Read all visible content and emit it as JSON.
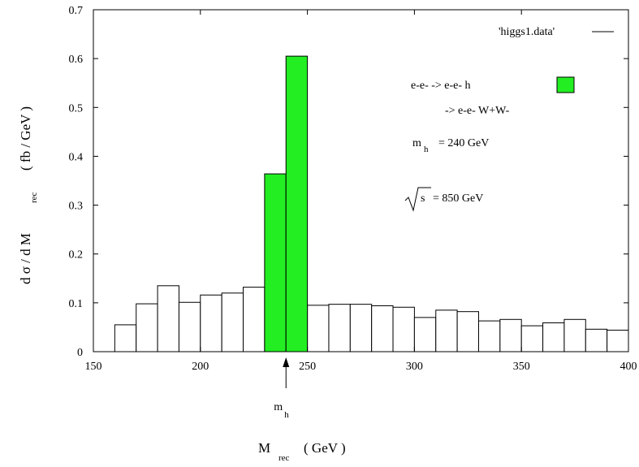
{
  "chart_data": {
    "type": "bar",
    "xlim": [
      150,
      400
    ],
    "ylim": [
      0,
      0.7
    ],
    "x_ticks": [
      150,
      200,
      250,
      300,
      350,
      400
    ],
    "x_tick_labels": [
      "150",
      "200",
      "250",
      "300",
      "350",
      "400"
    ],
    "y_ticks": [
      0,
      0.1,
      0.2,
      0.3,
      0.4,
      0.5,
      0.6,
      0.7
    ],
    "y_tick_labels": [
      "0",
      "0.1",
      "0.2",
      "0.3",
      "0.4",
      "0.5",
      "0.6",
      "0.7"
    ],
    "xlabel": "M",
    "xlabel_sub": "rec",
    "xlabel_unit": "( GeV )",
    "ylabel": "d σ / d M",
    "ylabel_sub": "rec",
    "ylabel_unit": "( fb / GeV )",
    "bin_width": 10,
    "bins": [
      150,
      160,
      170,
      180,
      190,
      200,
      210,
      220,
      230,
      240,
      250,
      260,
      270,
      280,
      290,
      300,
      310,
      320,
      330,
      340,
      350,
      360,
      370,
      380,
      390
    ],
    "series": [
      {
        "name": "'higgs1.data'",
        "style": "outline",
        "color": "#000000",
        "values": [
          0.0,
          0.055,
          0.098,
          0.135,
          0.101,
          0.116,
          0.12,
          0.132,
          0.0,
          0.0,
          0.095,
          0.097,
          0.097,
          0.094,
          0.091,
          0.07,
          0.085,
          0.082,
          0.063,
          0.066,
          0.053,
          0.059,
          0.066,
          0.046,
          0.044
        ]
      },
      {
        "name": "",
        "style": "filled",
        "color": "#22ee22",
        "values": [
          0,
          0,
          0,
          0,
          0,
          0,
          0,
          0,
          0.364,
          0.605,
          0,
          0,
          0,
          0,
          0,
          0,
          0,
          0,
          0,
          0,
          0,
          0,
          0,
          0,
          0
        ]
      }
    ],
    "legend_position": "top-right",
    "marker": {
      "x": 240,
      "label": "m",
      "label_sub": "h"
    },
    "annotations": {
      "process_line1": "e-e- -> e-e- h",
      "process_line2": "-> e-e- W+W-",
      "mass_label": "m",
      "mass_sub": "h",
      "mass_value": "= 240 GeV",
      "sqrt_s_label": "s",
      "sqrt_s_value": "= 850 GeV"
    }
  }
}
